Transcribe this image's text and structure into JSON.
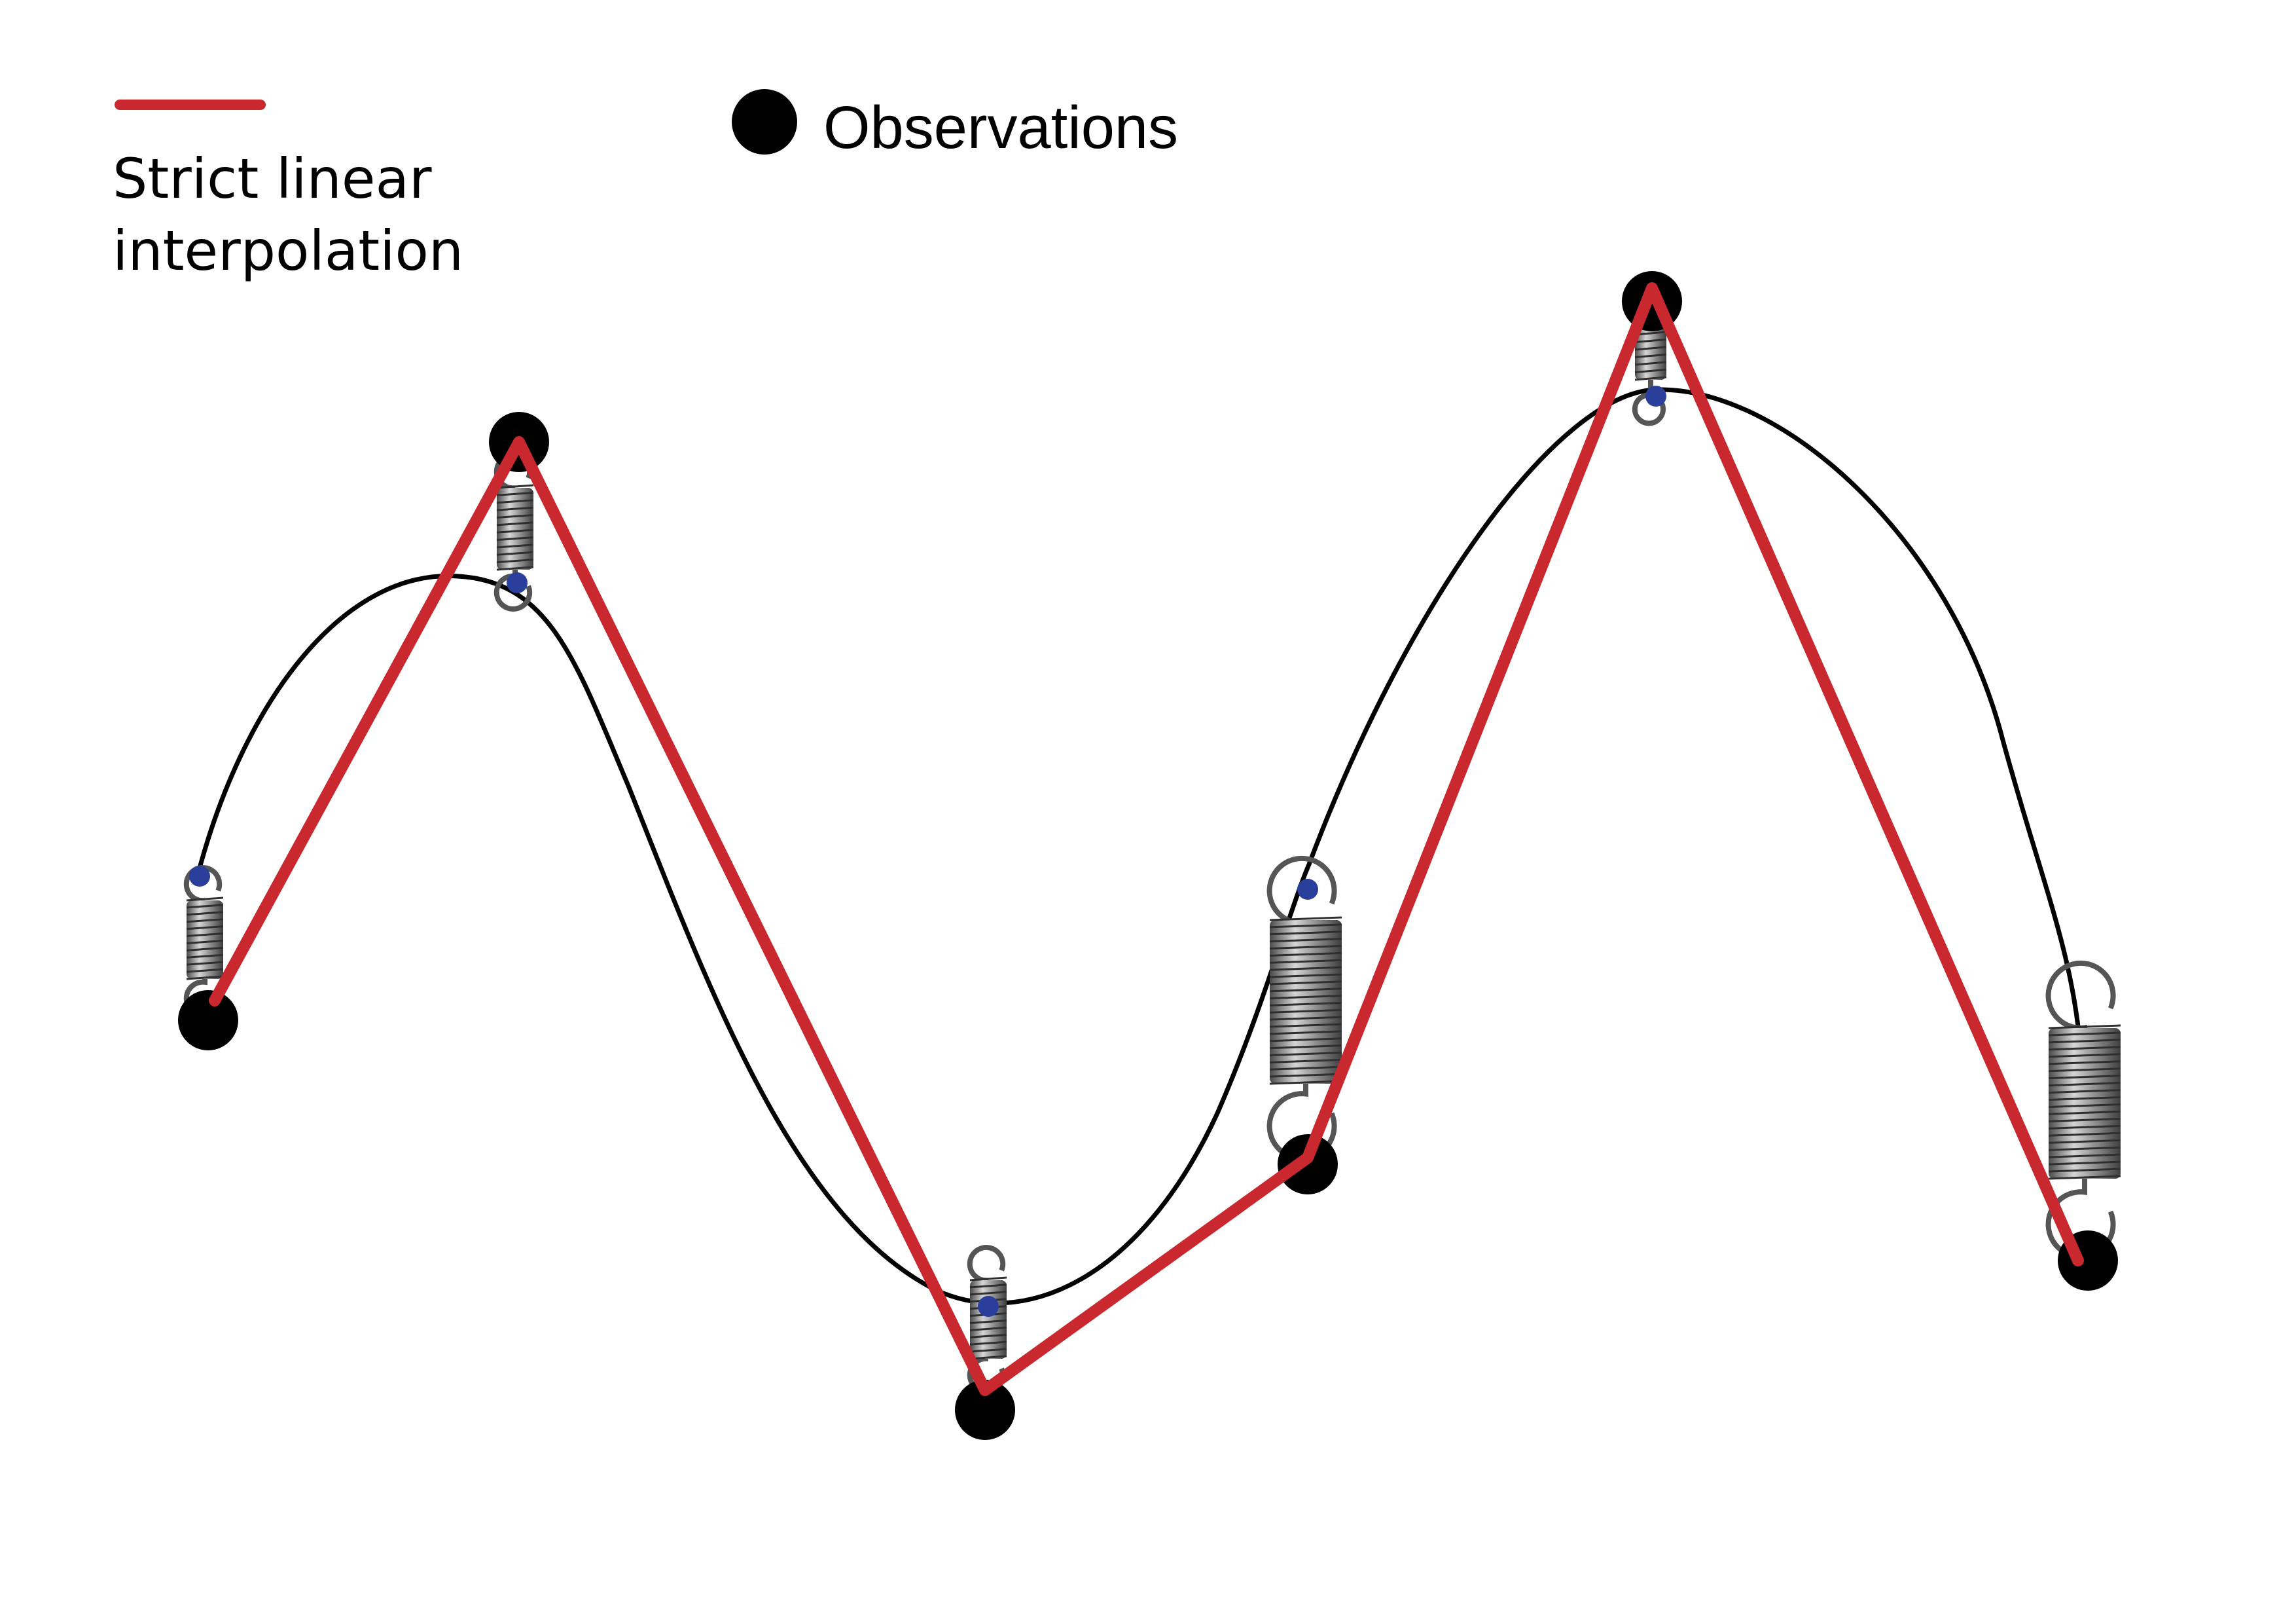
{
  "legend": {
    "interpolation_label": "Strict linear\ninterpolation",
    "observations_label": "Observations"
  },
  "colors": {
    "interpolation": "#c8282e",
    "observation": "#000000",
    "spline": "#000000",
    "spline_anchor": "#2a3f9c",
    "spring": "#777777"
  },
  "diagram": {
    "observations": [
      {
        "id": "obs-1"
      },
      {
        "id": "obs-2"
      },
      {
        "id": "obs-3"
      },
      {
        "id": "obs-4"
      },
      {
        "id": "obs-5"
      },
      {
        "id": "obs-6"
      }
    ],
    "springs": [
      {
        "id": "spring-1",
        "tension": "low"
      },
      {
        "id": "spring-2",
        "tension": "low"
      },
      {
        "id": "spring-3",
        "tension": "low"
      },
      {
        "id": "spring-4",
        "tension": "high"
      },
      {
        "id": "spring-5",
        "tension": "low"
      },
      {
        "id": "spring-6",
        "tension": "high"
      }
    ]
  }
}
